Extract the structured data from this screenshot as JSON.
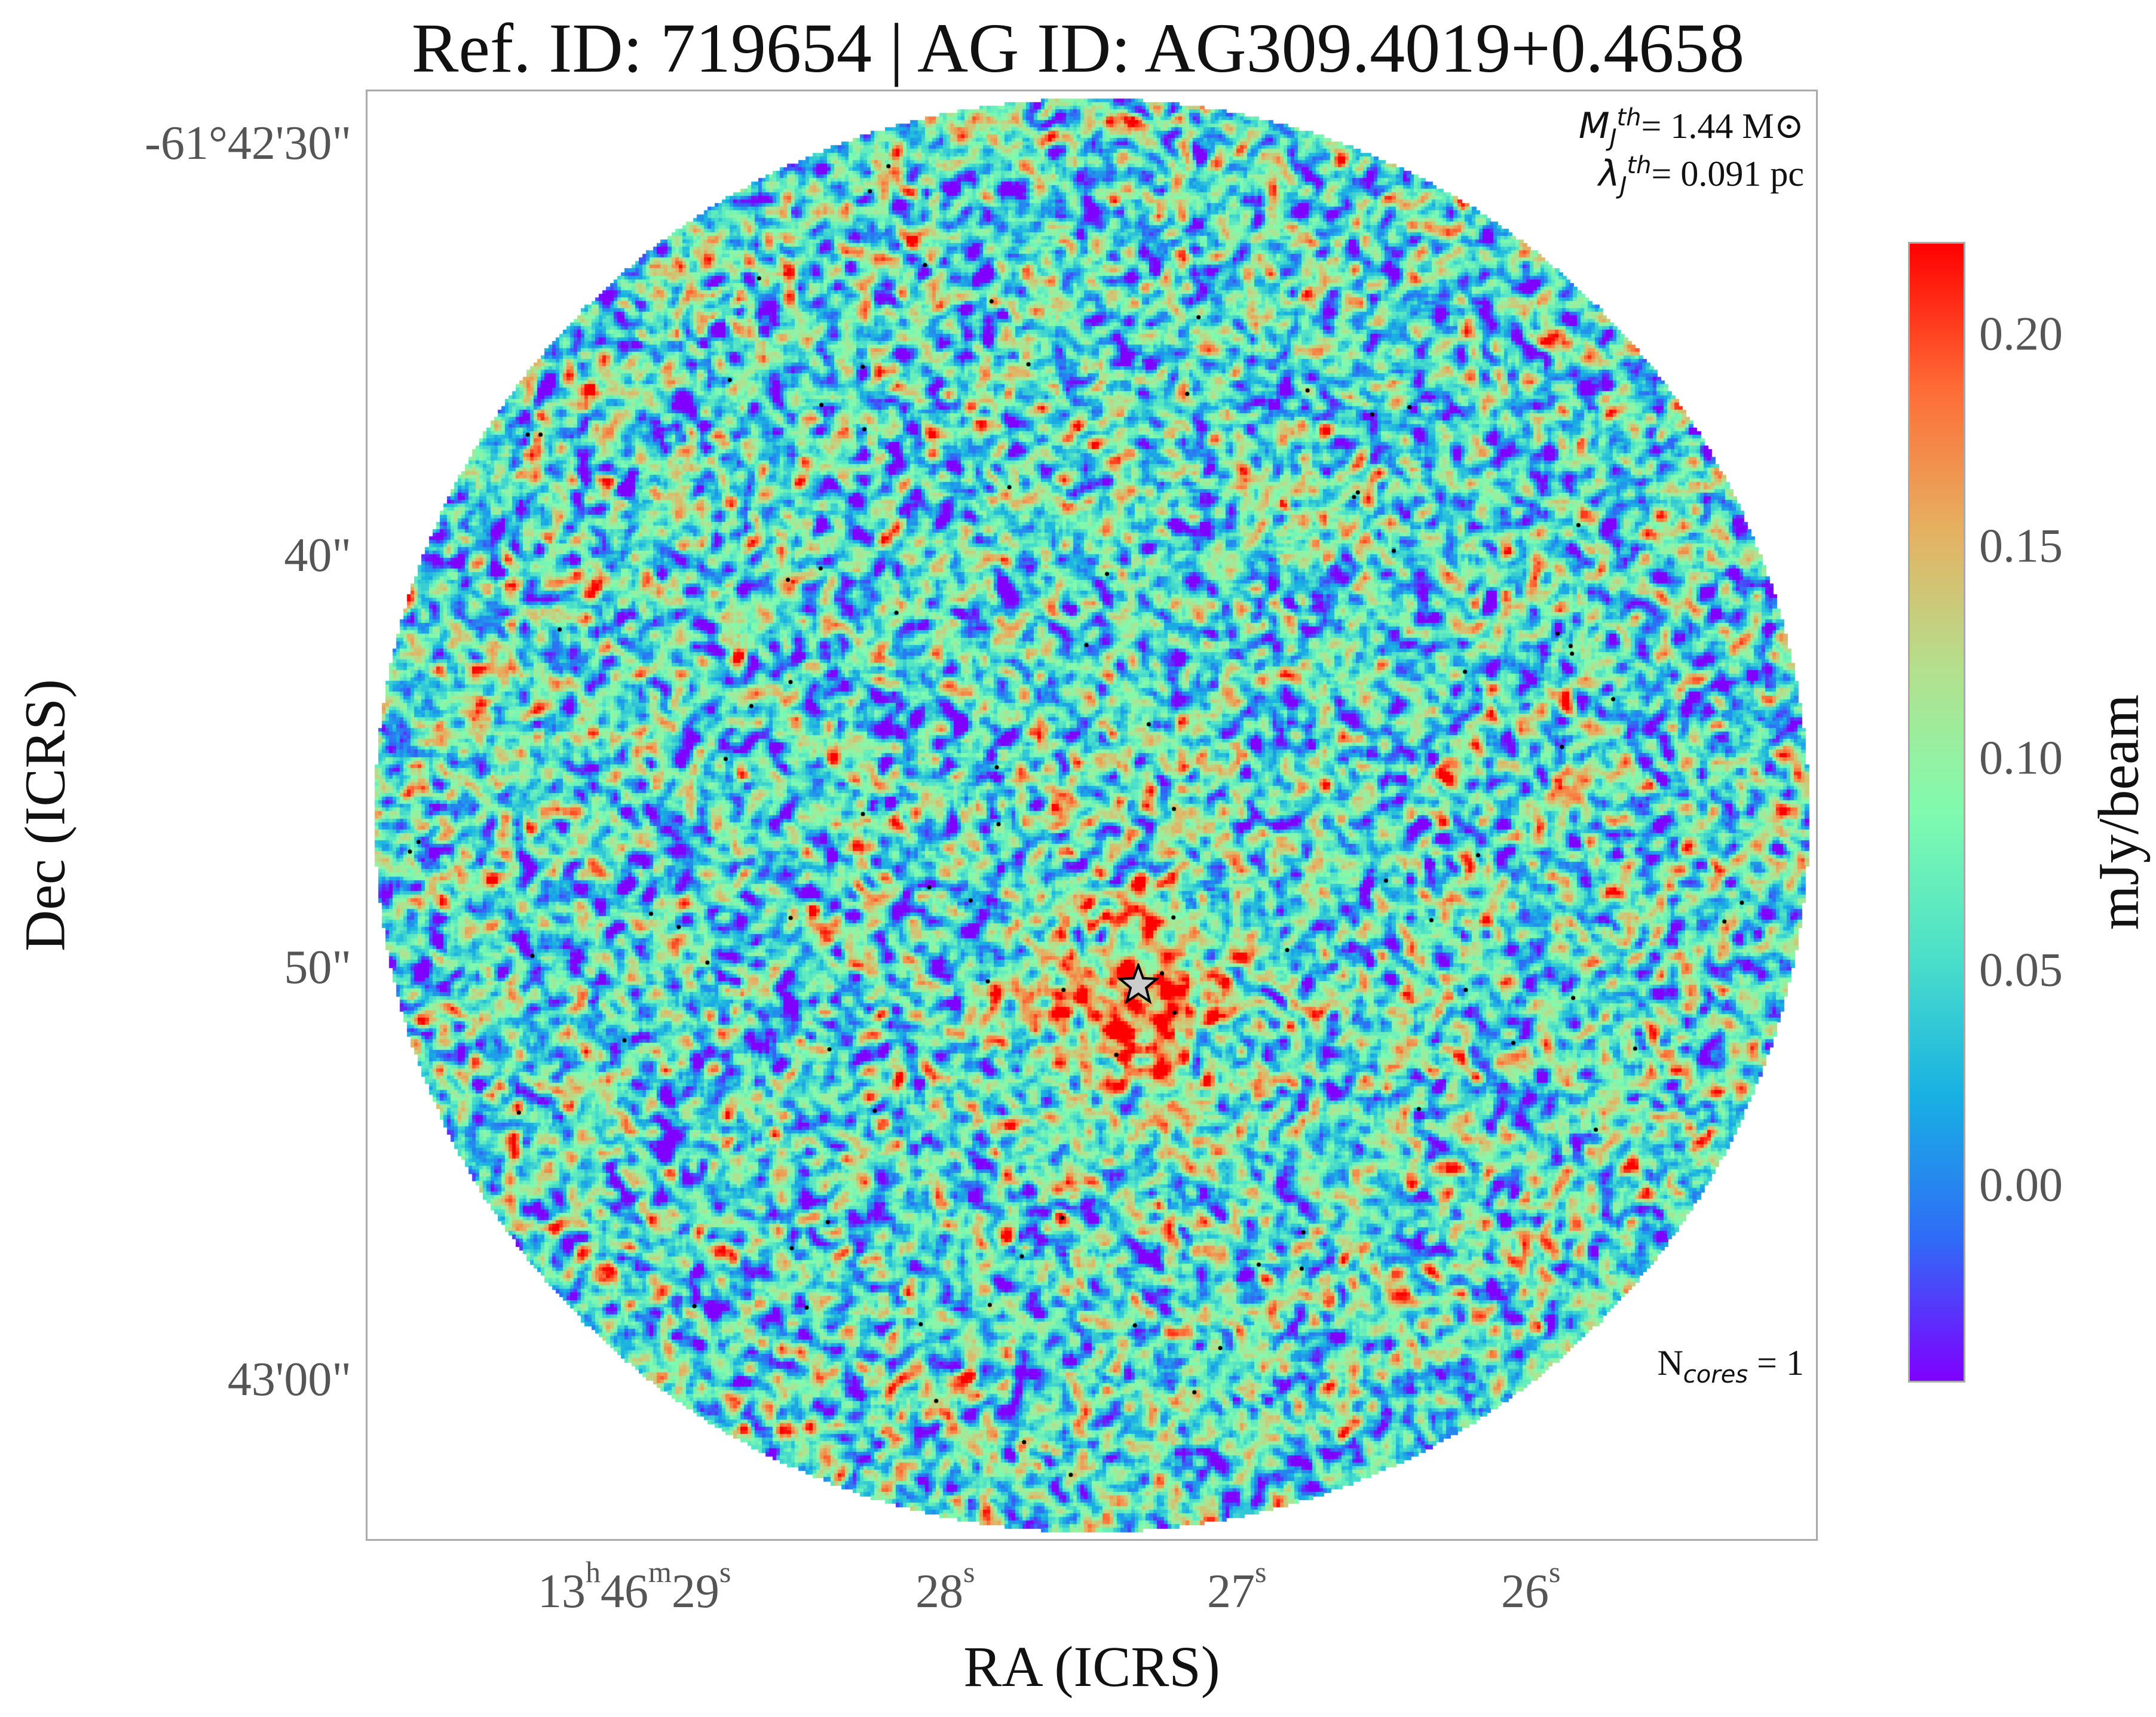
{
  "title": "Ref. ID: 719654 | AG ID: AG309.4019+0.4658",
  "axes": {
    "xlabel": "RA (ICRS)",
    "ylabel": "Dec (ICRS)",
    "x_ticks": [
      {
        "h": "13",
        "h_sup": "h",
        "m": "46",
        "m_sup": "m",
        "s": "29",
        "s_sup": "s"
      },
      {
        "s": "28",
        "s_sup": "s"
      },
      {
        "s": "27",
        "s_sup": "s"
      },
      {
        "s": "26",
        "s_sup": "s"
      }
    ],
    "y_ticks": [
      "-61°42'30\"",
      "40\"",
      "50\"",
      "43'00\""
    ]
  },
  "annotations": {
    "jeans_mass_symbol": "M",
    "jeans_mass_sub": "J",
    "jeans_mass_sup": "th",
    "jeans_mass_value": "= 1.44 M⊙",
    "jeans_length_symbol": "λ",
    "jeans_length_sub": "J",
    "jeans_length_sup": "th",
    "jeans_length_value": "= 0.091 pc",
    "ncores_symbol": "N",
    "ncores_sub": "cores",
    "ncores_value": " = 1"
  },
  "colorbar": {
    "label": "mJy/beam",
    "ticks": [
      "0.20",
      "0.15",
      "0.10",
      "0.05",
      "0.00"
    ],
    "colormap": "rainbow",
    "colors": [
      "#7f00ff",
      "#2f6cf6",
      "#18b0e3",
      "#4ce0c9",
      "#80fbaf",
      "#b3e08e",
      "#e6b061",
      "#ff6a35",
      "#ff0000"
    ]
  },
  "marker": {
    "type": "star",
    "color": "#cccccc",
    "stroke": "#000000"
  }
}
